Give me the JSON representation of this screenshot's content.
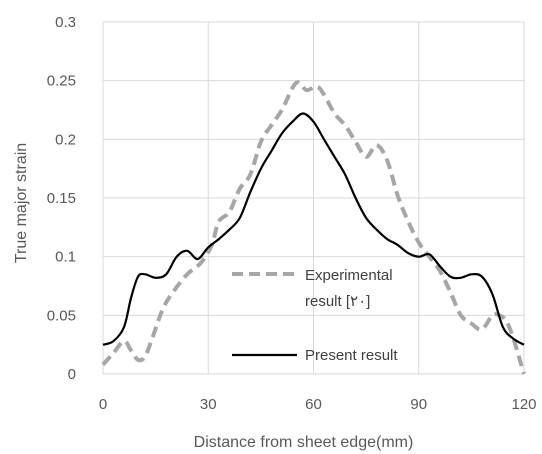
{
  "chart_data": {
    "type": "line",
    "title": "",
    "xlabel": "Distance from sheet edge(mm)",
    "ylabel": "True major strain",
    "xlim": [
      0,
      120
    ],
    "ylim": [
      0,
      0.3
    ],
    "x_ticks": [
      0,
      30,
      60,
      90,
      120
    ],
    "x_tick_labels": [
      "0",
      "30",
      "60",
      "90",
      "120"
    ],
    "y_ticks": [
      0,
      0.05,
      0.1,
      0.15,
      0.2,
      0.25,
      0.3
    ],
    "y_tick_labels": [
      "0",
      "0.05",
      "0.1",
      "0.15",
      "0.2",
      "0.25",
      "0.3"
    ],
    "grid": true,
    "legend_placement": "bottom-center",
    "series": [
      {
        "name": "Experimental result [۲۰]",
        "legend_lines": [
          "Experimental",
          "result [۲۰]"
        ],
        "style": "dashed",
        "color": "#a6a6a6",
        "x": [
          0,
          3,
          6,
          8,
          10,
          12,
          14,
          17,
          20,
          24,
          28,
          31,
          33,
          36,
          39,
          42,
          45,
          48,
          51,
          55,
          58,
          61,
          63,
          66,
          69,
          72,
          75,
          78,
          81,
          84,
          87,
          90,
          93,
          96,
          99,
          102,
          105,
          108,
          111,
          113,
          115,
          117,
          119,
          120
        ],
        "y": [
          0.008,
          0.018,
          0.028,
          0.02,
          0.012,
          0.015,
          0.03,
          0.055,
          0.07,
          0.085,
          0.095,
          0.11,
          0.13,
          0.138,
          0.158,
          0.17,
          0.198,
          0.212,
          0.225,
          0.248,
          0.242,
          0.245,
          0.238,
          0.222,
          0.212,
          0.198,
          0.185,
          0.195,
          0.182,
          0.152,
          0.13,
          0.112,
          0.1,
          0.088,
          0.07,
          0.05,
          0.043,
          0.038,
          0.05,
          0.05,
          0.045,
          0.03,
          0.01,
          0.0
        ]
      },
      {
        "name": "Present result",
        "legend_lines": [
          "Present result"
        ],
        "style": "solid",
        "color": "#000000",
        "x": [
          0,
          3,
          6,
          8,
          10,
          12,
          15,
          18,
          21,
          24,
          27,
          30,
          33,
          36,
          39,
          42,
          45,
          48,
          51,
          54,
          57,
          60,
          63,
          66,
          69,
          72,
          75,
          78,
          81,
          84,
          87,
          90,
          93,
          96,
          99,
          102,
          105,
          108,
          111,
          114,
          117,
          120
        ],
        "y": [
          0.025,
          0.028,
          0.04,
          0.065,
          0.083,
          0.085,
          0.082,
          0.085,
          0.1,
          0.105,
          0.098,
          0.108,
          0.115,
          0.123,
          0.133,
          0.155,
          0.175,
          0.19,
          0.205,
          0.215,
          0.222,
          0.215,
          0.2,
          0.185,
          0.17,
          0.15,
          0.133,
          0.123,
          0.115,
          0.11,
          0.103,
          0.1,
          0.102,
          0.092,
          0.083,
          0.082,
          0.085,
          0.083,
          0.068,
          0.04,
          0.03,
          0.025
        ]
      }
    ]
  }
}
